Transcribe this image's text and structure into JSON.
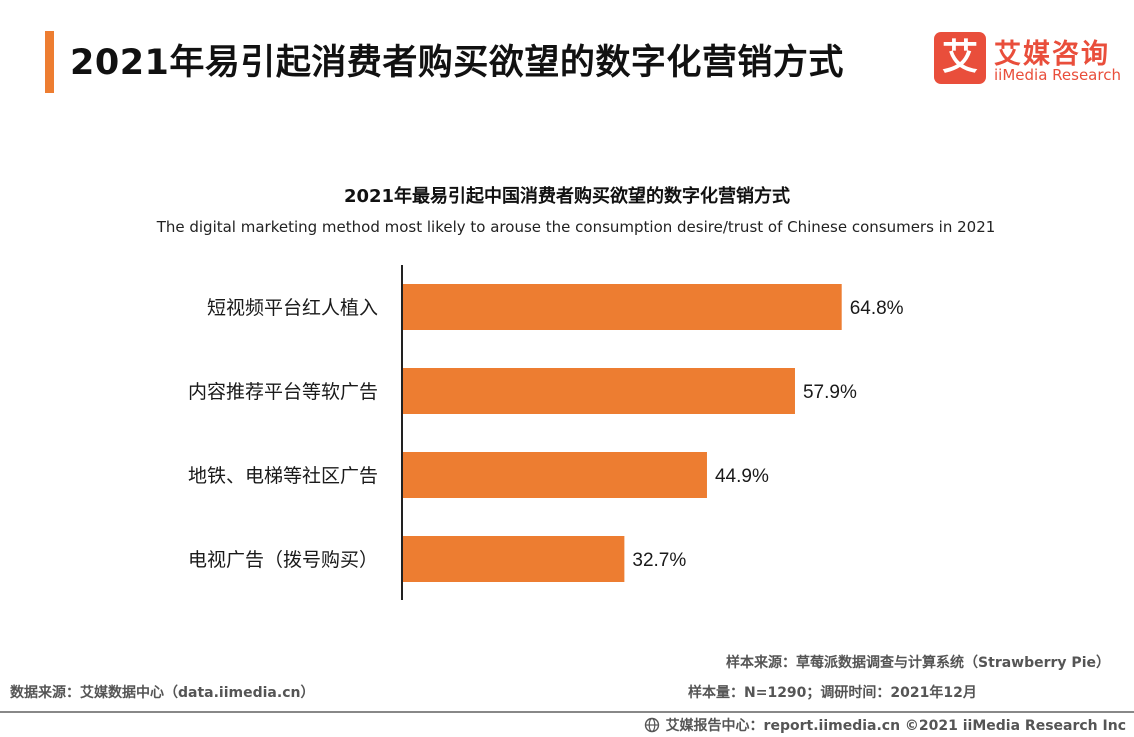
{
  "header": {
    "title": "2021年易引起消费者购买欲望的数字化营销方式",
    "logo_cn": "艾媒咨询",
    "logo_en": "iiMedia Research",
    "logo_mark": "艾"
  },
  "chart_data": {
    "type": "bar",
    "orientation": "horizontal",
    "title": "2021年最易引起中国消费者购买欲望的数字化营销方式",
    "subtitle": "The digital marketing method most likely to arouse the consumption desire/trust of Chinese consumers in 2021",
    "categories": [
      "短视频平台红人植入",
      "内容推荐平台等软广告",
      "地铁、电梯等社区广告",
      "电视广告（拨号购买）"
    ],
    "values": [
      64.8,
      57.9,
      44.9,
      32.7
    ],
    "value_labels": [
      "64.8%",
      "57.9%",
      "44.9%",
      "32.7%"
    ],
    "unit": "%",
    "xlim": [
      0,
      100
    ],
    "bar_color": "#ed7d31",
    "grid": false
  },
  "notes": {
    "sample_source": "样本来源：草莓派数据调查与计算系统（Strawberry Pie）",
    "sample_size": "样本量：N=1290；调研时间：2021年12月",
    "data_source": "数据来源：艾媒数据中心（data.iimedia.cn）"
  },
  "footer": {
    "text": "艾媒报告中心：report.iimedia.cn ©2021  iiMedia Research  Inc",
    "icon": "globe-icon"
  },
  "colors": {
    "accent": "#ed7d31",
    "brand": "#e94e3b"
  }
}
